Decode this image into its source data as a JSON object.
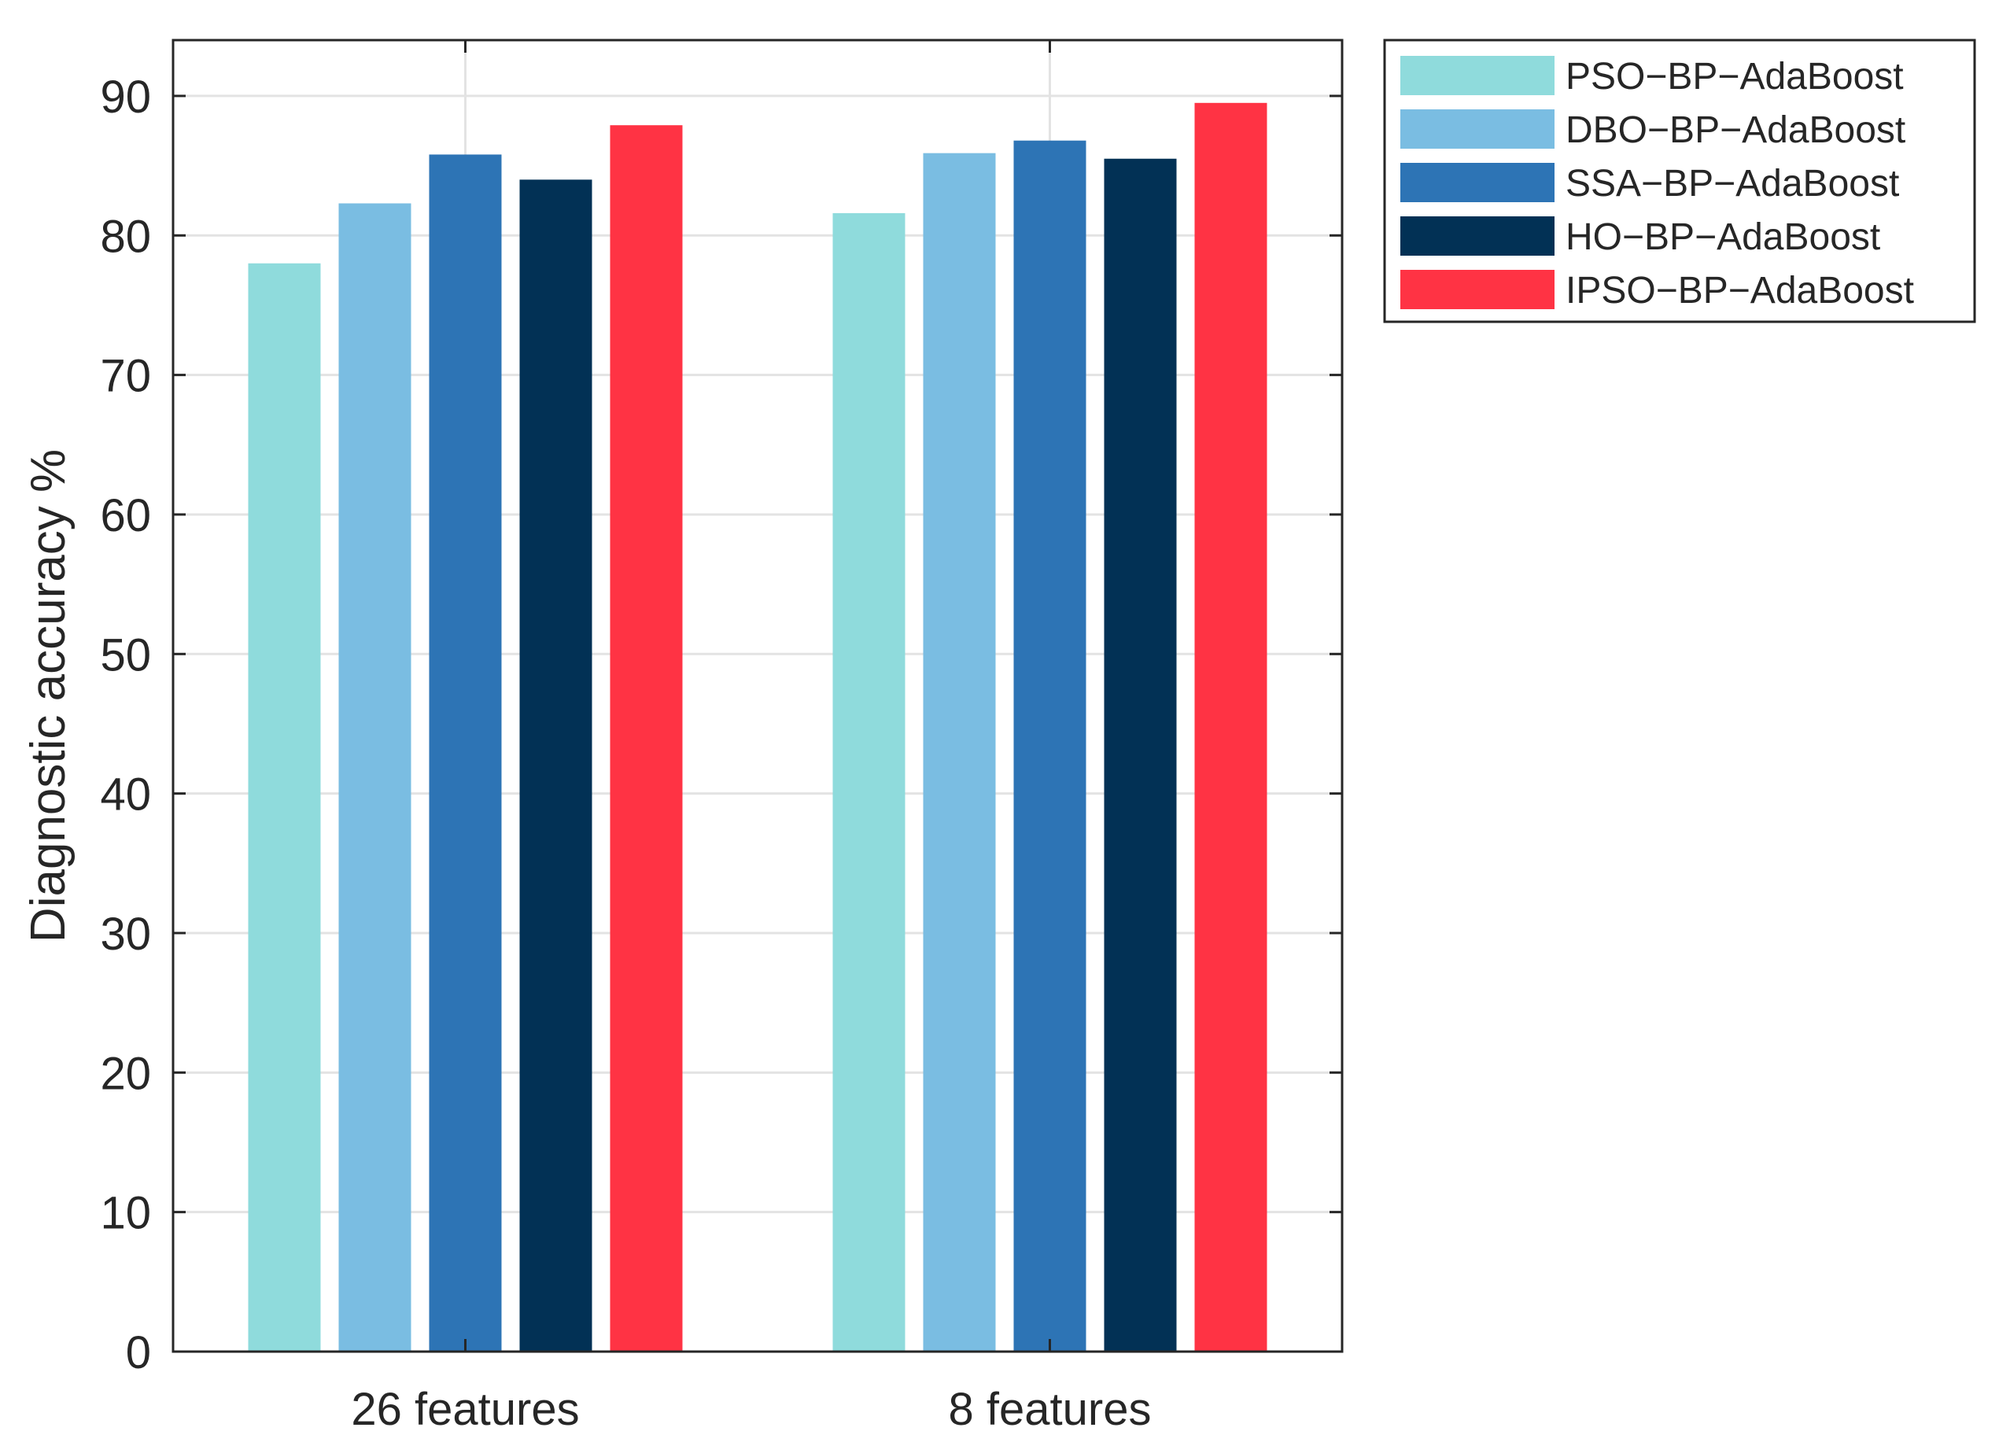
{
  "chart_data": {
    "type": "bar",
    "title": "",
    "xlabel": "",
    "ylabel": "Diagnostic accuracy %",
    "categories": [
      "26 features",
      "8 features"
    ],
    "series": [
      {
        "name": "PSO−BP−AdaBoost",
        "color": "#8fdbdc",
        "values": [
          78.0,
          81.6
        ]
      },
      {
        "name": "DBO−BP−AdaBoost",
        "color": "#7abde2",
        "values": [
          82.3,
          85.9
        ]
      },
      {
        "name": "SSA−BP−AdaBoost",
        "color": "#2d74b5",
        "values": [
          85.8,
          86.8
        ]
      },
      {
        "name": "HO−BP−AdaBoost",
        "color": "#023155",
        "values": [
          84.0,
          85.5
        ]
      },
      {
        "name": "IPSO−BP−AdaBoost",
        "color": "#ff3344",
        "values": [
          87.9,
          89.5
        ]
      }
    ],
    "ylim": [
      0,
      94
    ],
    "yticks": [
      0,
      10,
      20,
      30,
      40,
      50,
      60,
      70,
      80,
      90
    ],
    "ytick_labels": [
      "0",
      "10",
      "20",
      "30",
      "40",
      "50",
      "60",
      "70",
      "80",
      "90"
    ],
    "grid": true,
    "legend_position": "outside-top-right"
  }
}
